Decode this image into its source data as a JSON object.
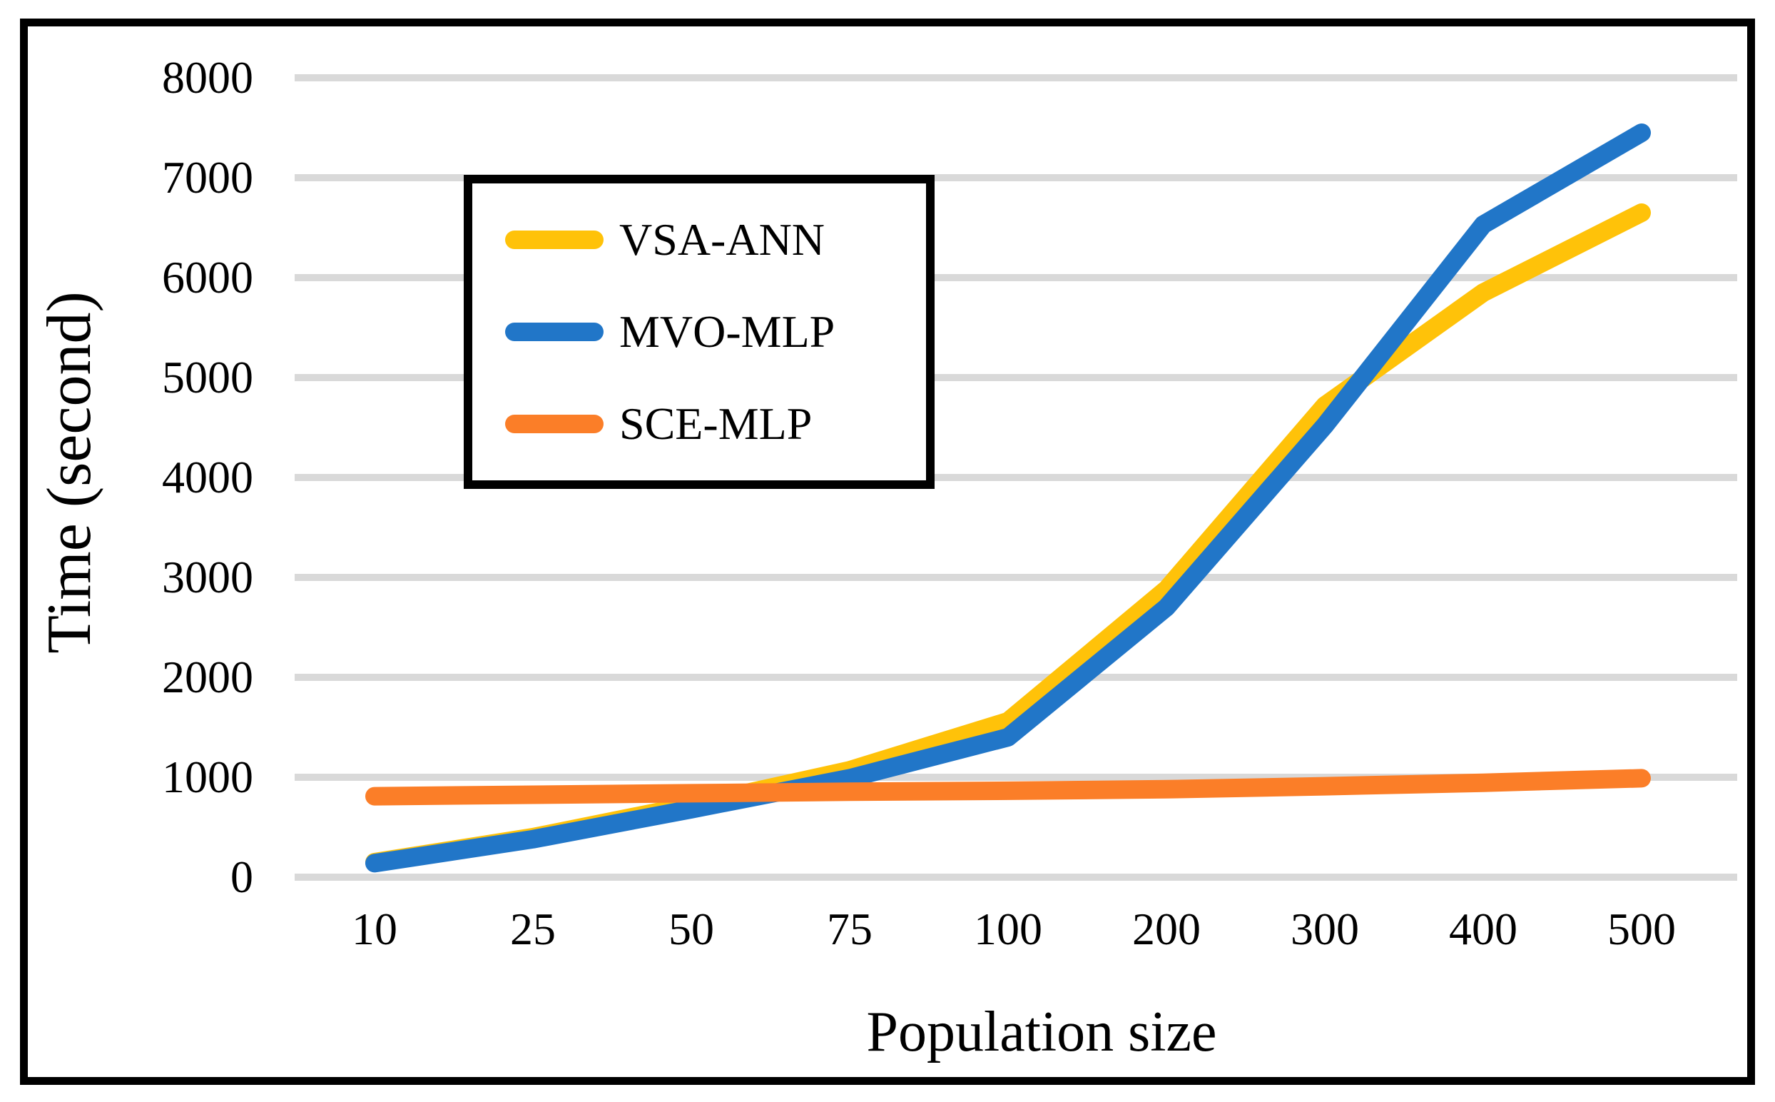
{
  "chart_data": {
    "type": "line",
    "title": "",
    "xlabel": "Population size",
    "ylabel": "Time (second)",
    "categories": [
      "10",
      "25",
      "50",
      "75",
      "100",
      "200",
      "300",
      "400",
      "500"
    ],
    "ylim": [
      0,
      8000
    ],
    "ytick_step": 1000,
    "grid": true,
    "gridline_color": "#D9D9D9",
    "legend_position": "upper-left-inside",
    "series": [
      {
        "name": "VSA-ANN",
        "color": "#FFC209",
        "values": [
          150,
          400,
          720,
          1070,
          1560,
          2880,
          4720,
          5850,
          6650
        ]
      },
      {
        "name": "MVO-MLP",
        "color": "#2176C8",
        "values": [
          140,
          380,
          680,
          990,
          1400,
          2700,
          4520,
          6530,
          7450
        ]
      },
      {
        "name": "SCE-MLP",
        "color": "#FB7E28",
        "values": [
          810,
          825,
          840,
          855,
          865,
          880,
          910,
          945,
          990
        ]
      }
    ]
  }
}
